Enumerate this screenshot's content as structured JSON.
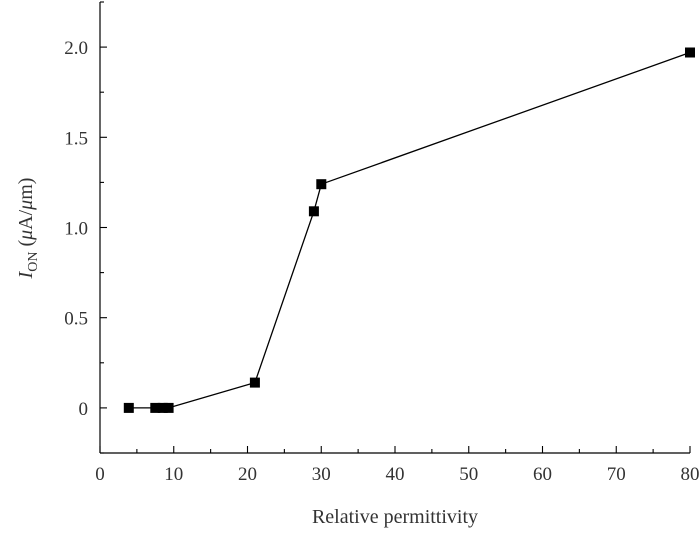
{
  "chart_data": {
    "type": "line",
    "title": "",
    "xlabel": "Relative permittivity",
    "ylabel": {
      "main": "I",
      "subscript": "ON",
      "unit_open": " (",
      "unit_mu": "μ",
      "unit_rest": "A/",
      "unit_mu2": "μ",
      "unit_close": "m)"
    },
    "xlim": [
      0,
      80
    ],
    "ylim": [
      -0.25,
      2.25
    ],
    "xticks": [
      0,
      10,
      20,
      30,
      40,
      50,
      60,
      70,
      80
    ],
    "xtick_labels": [
      "0",
      "10",
      "20",
      "30",
      "40",
      "50",
      "60",
      "70",
      "80"
    ],
    "yticks": [
      0,
      0.5,
      1.0,
      1.5,
      2.0
    ],
    "ytick_labels": [
      "0",
      "0.5",
      "1.0",
      "1.5",
      "2.0"
    ],
    "grid": false,
    "series": [
      {
        "marker": "square",
        "color": "#000000",
        "x": [
          3.9,
          7.5,
          8.5,
          9.3,
          21,
          29,
          30,
          80
        ],
        "y": [
          0.0,
          0.0,
          0.0,
          0.0,
          0.14,
          1.09,
          1.24,
          1.97
        ]
      }
    ]
  }
}
